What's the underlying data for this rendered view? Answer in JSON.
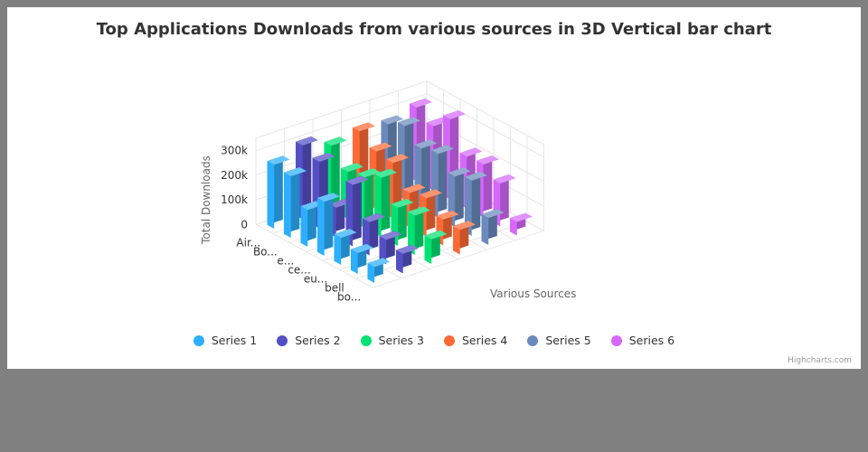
{
  "chart_data": {
    "type": "bar",
    "variant": "3d-column",
    "title": "Top Applications Downloads from various sources in 3D Vertical bar chart",
    "ylabel": "Total Downloads",
    "xlabel": "Various Sources",
    "yticks": [
      "0",
      "100k",
      "200k",
      "300k"
    ],
    "ylim": [
      0,
      300000
    ],
    "categories": [
      "Air...",
      "Bo...",
      "e...",
      "ce...",
      "eu...",
      "bell",
      "bo..."
    ],
    "series": [
      {
        "name": "Series 1",
        "color": "#2caffe",
        "values": [
          260000,
          250000,
          150000,
          220000,
          110000,
          85000,
          65000
        ]
      },
      {
        "name": "Series 2",
        "color": "#544fc5",
        "values": [
          300000,
          270000,
          120000,
          250000,
          135000,
          100000,
          80000
        ]
      },
      {
        "name": "Series 3",
        "color": "#00e272",
        "values": [
          260000,
          190000,
          205000,
          240000,
          155000,
          160000,
          100000
        ]
      },
      {
        "name": "Series 4",
        "color": "#fe6a35",
        "values": [
          280000,
          235000,
          225000,
          140000,
          155000,
          105000,
          100000
        ]
      },
      {
        "name": "Series 5",
        "color": "#6b8abc",
        "values": [
          270000,
          300000,
          245000,
          260000,
          205000,
          225000,
          110000
        ]
      },
      {
        "name": "Series 6",
        "color": "#d568fb",
        "values": [
          300000,
          260000,
          325000,
          210000,
          215000,
          175000,
          55000
        ]
      }
    ],
    "grid": true,
    "legend": "bottom"
  },
  "credits": "Highcharts.com"
}
